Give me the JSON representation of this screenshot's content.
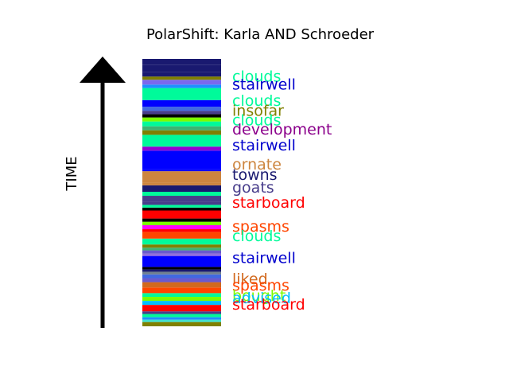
{
  "chart_data": {
    "type": "bar",
    "title": "PolarShift: Karla AND Schroeder",
    "ylabel": "TIME",
    "ylim": [
      0,
      100
    ],
    "segments": [
      {
        "y0": 0.0,
        "y1": 1.6,
        "color": "#808000"
      },
      {
        "y0": 1.6,
        "y1": 2.5,
        "color": "#40e0d0"
      },
      {
        "y0": 2.5,
        "y1": 3.4,
        "color": "#1e90ff"
      },
      {
        "y0": 3.4,
        "y1": 4.6,
        "color": "#00fa9a"
      },
      {
        "y0": 4.6,
        "y1": 5.6,
        "color": "#483d8b"
      },
      {
        "y0": 5.6,
        "y1": 8.0,
        "color": "#ff0000"
      },
      {
        "y0": 8.0,
        "y1": 9.5,
        "color": "#00bfff"
      },
      {
        "y0": 9.5,
        "y1": 11.0,
        "color": "#7cfc00"
      },
      {
        "y0": 11.0,
        "y1": 12.4,
        "color": "#00fa9a"
      },
      {
        "y0": 12.4,
        "y1": 14.5,
        "color": "#ff4500"
      },
      {
        "y0": 14.5,
        "y1": 16.5,
        "color": "#d2691e"
      },
      {
        "y0": 16.5,
        "y1": 18.0,
        "color": "#6a5acd"
      },
      {
        "y0": 18.0,
        "y1": 19.4,
        "color": "#4169e1"
      },
      {
        "y0": 19.4,
        "y1": 20.4,
        "color": "#708090"
      },
      {
        "y0": 20.4,
        "y1": 21.3,
        "color": "#191970"
      },
      {
        "y0": 21.3,
        "y1": 22.2,
        "color": "#000000"
      },
      {
        "y0": 22.2,
        "y1": 26.3,
        "color": "#0000ff"
      },
      {
        "y0": 26.3,
        "y1": 27.2,
        "color": "#9370db"
      },
      {
        "y0": 27.2,
        "y1": 28.4,
        "color": "#6a5acd"
      },
      {
        "y0": 28.4,
        "y1": 29.4,
        "color": "#3cb371"
      },
      {
        "y0": 29.4,
        "y1": 30.6,
        "color": "#808000"
      },
      {
        "y0": 30.6,
        "y1": 32.8,
        "color": "#00fa9a"
      },
      {
        "y0": 32.8,
        "y1": 35.3,
        "color": "#ff4500"
      },
      {
        "y0": 35.3,
        "y1": 36.3,
        "color": "#ff0000"
      },
      {
        "y0": 36.3,
        "y1": 37.8,
        "color": "#ff00ff"
      },
      {
        "y0": 37.8,
        "y1": 39.1,
        "color": "#7cfc00"
      },
      {
        "y0": 39.1,
        "y1": 40.3,
        "color": "#000000"
      },
      {
        "y0": 40.3,
        "y1": 43.3,
        "color": "#ff0000"
      },
      {
        "y0": 43.3,
        "y1": 44.4,
        "color": "#000000"
      },
      {
        "y0": 44.4,
        "y1": 45.4,
        "color": "#00fa9a"
      },
      {
        "y0": 45.4,
        "y1": 46.6,
        "color": "#483d8b"
      },
      {
        "y0": 46.6,
        "y1": 48.8,
        "color": "#483d8b"
      },
      {
        "y0": 48.8,
        "y1": 50.3,
        "color": "#00fa9a"
      },
      {
        "y0": 50.3,
        "y1": 52.7,
        "color": "#191970"
      },
      {
        "y0": 52.7,
        "y1": 53.6,
        "color": "#cd853f"
      },
      {
        "y0": 53.6,
        "y1": 58.0,
        "color": "#cd853f"
      },
      {
        "y0": 58.0,
        "y1": 58.9,
        "color": "#0000ff"
      },
      {
        "y0": 58.9,
        "y1": 65.7,
        "color": "#0000ff"
      },
      {
        "y0": 65.7,
        "y1": 67.2,
        "color": "#9400d3"
      },
      {
        "y0": 67.2,
        "y1": 71.6,
        "color": "#00fa9a"
      },
      {
        "y0": 71.6,
        "y1": 73.3,
        "color": "#808000"
      },
      {
        "y0": 73.3,
        "y1": 74.8,
        "color": "#3cb371"
      },
      {
        "y0": 74.8,
        "y1": 76.6,
        "color": "#00fa9a"
      },
      {
        "y0": 76.6,
        "y1": 78.1,
        "color": "#7cfc00"
      },
      {
        "y0": 78.1,
        "y1": 79.3,
        "color": "#000000"
      },
      {
        "y0": 79.3,
        "y1": 80.6,
        "color": "#483d8b"
      },
      {
        "y0": 80.6,
        "y1": 82.1,
        "color": "#4169e1"
      },
      {
        "y0": 82.1,
        "y1": 84.6,
        "color": "#0000ff"
      },
      {
        "y0": 84.6,
        "y1": 89.1,
        "color": "#00fa9a"
      },
      {
        "y0": 89.1,
        "y1": 90.4,
        "color": "#1e90ff"
      },
      {
        "y0": 90.4,
        "y1": 92.2,
        "color": "#7b68ee"
      },
      {
        "y0": 92.2,
        "y1": 93.4,
        "color": "#808000"
      },
      {
        "y0": 93.4,
        "y1": 95.0,
        "color": "#191970"
      },
      {
        "y0": 95.0,
        "y1": 97.7,
        "color": "#191970"
      },
      {
        "y0": 97.7,
        "y1": 100.0,
        "color": "#191970"
      }
    ],
    "labels": [
      {
        "text": "clouds",
        "y": 93.6,
        "color": "#00fa9a"
      },
      {
        "text": "stairwell",
        "y": 90.7,
        "color": "#0000cd"
      },
      {
        "text": "clouds",
        "y": 84.5,
        "color": "#00fa9a"
      },
      {
        "text": "insofar",
        "y": 80.8,
        "color": "#808000"
      },
      {
        "text": "clouds",
        "y": 77.2,
        "color": "#00fa9a"
      },
      {
        "text": "development",
        "y": 73.8,
        "color": "#8b008b"
      },
      {
        "text": "stairwell",
        "y": 67.8,
        "color": "#0000cd"
      },
      {
        "text": "ornate",
        "y": 60.7,
        "color": "#cd853f"
      },
      {
        "text": "towns",
        "y": 56.9,
        "color": "#191970"
      },
      {
        "text": "goats",
        "y": 52.1,
        "color": "#483d8b"
      },
      {
        "text": "starboard",
        "y": 46.4,
        "color": "#ff0000"
      },
      {
        "text": "spasms",
        "y": 37.5,
        "color": "#ff4500"
      },
      {
        "text": "clouds",
        "y": 34.0,
        "color": "#00fa9a"
      },
      {
        "text": "stairwell",
        "y": 25.7,
        "color": "#0000cd"
      },
      {
        "text": "liked",
        "y": 17.9,
        "color": "#d2691e"
      },
      {
        "text": "spasms",
        "y": 15.5,
        "color": "#ff4500"
      },
      {
        "text": "bought",
        "y": 11.6,
        "color": "#7cfc00"
      },
      {
        "text": "advised",
        "y": 10.7,
        "color": "#00bfff"
      },
      {
        "text": "starboard",
        "y": 8.3,
        "color": "#ff0000"
      }
    ]
  }
}
